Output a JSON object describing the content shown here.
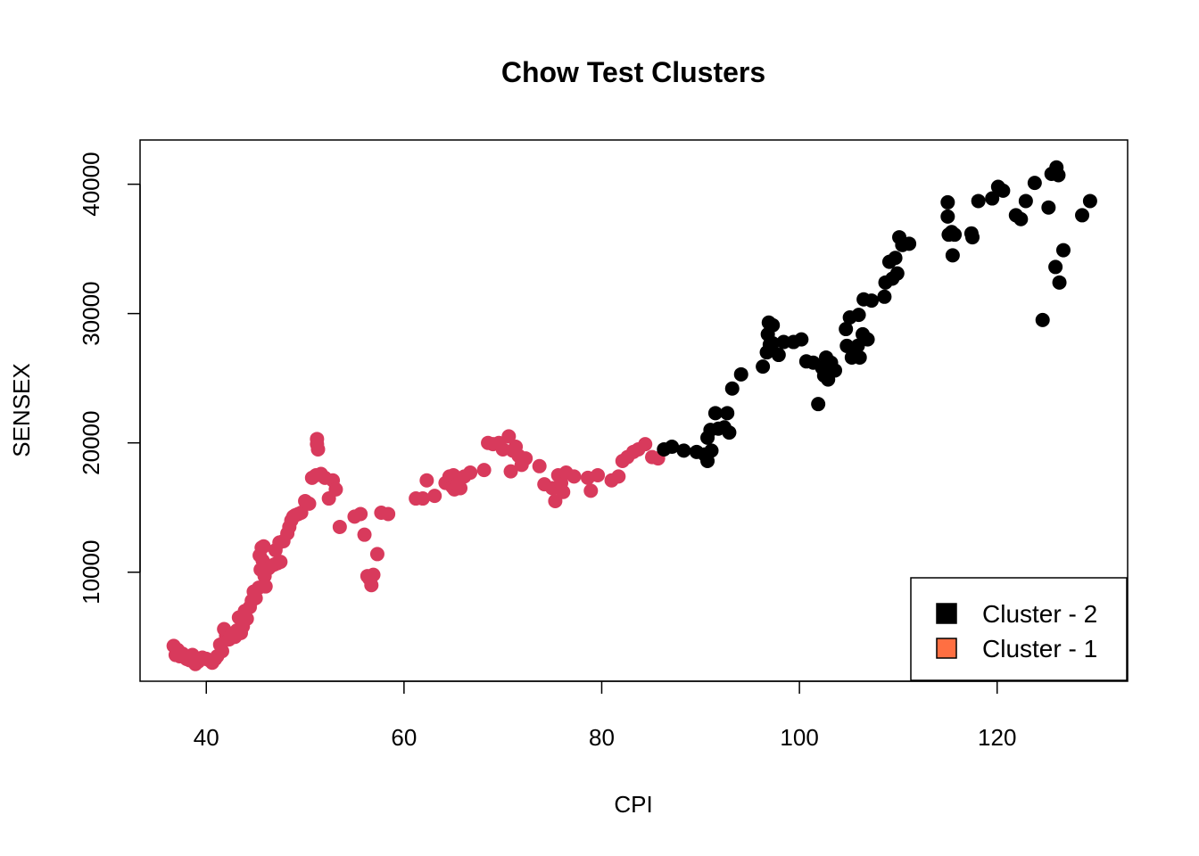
{
  "chart_data": {
    "type": "scatter",
    "title": "Chow Test Clusters",
    "xlabel": "CPI",
    "ylabel": "SENSEX",
    "xlim": [
      33.3,
      133.2
    ],
    "ylim": [
      1570,
      43420
    ],
    "x_ticks": [
      40,
      60,
      80,
      100,
      120
    ],
    "y_ticks": [
      10000,
      20000,
      30000,
      40000
    ],
    "grid": false,
    "legend": {
      "position": "bottom-right",
      "entries": [
        {
          "label": "Cluster - 2",
          "color": "#000000"
        },
        {
          "label": "Cluster - 1",
          "color": "#FF6F42"
        }
      ]
    },
    "series": [
      {
        "name": "Cluster - 1",
        "color": "#D83A5C",
        "points": [
          [
            36.7,
            4300
          ],
          [
            36.9,
            3600
          ],
          [
            37.1,
            4000
          ],
          [
            37.3,
            3500
          ],
          [
            37.6,
            3700
          ],
          [
            38.0,
            3300
          ],
          [
            38.3,
            3200
          ],
          [
            38.6,
            3600
          ],
          [
            38.9,
            2900
          ],
          [
            39.2,
            3100
          ],
          [
            39.6,
            3400
          ],
          [
            40.0,
            3300
          ],
          [
            40.3,
            3200
          ],
          [
            40.6,
            3000
          ],
          [
            40.9,
            3300
          ],
          [
            41.1,
            3500
          ],
          [
            41.4,
            4400
          ],
          [
            41.6,
            3900
          ],
          [
            41.8,
            5600
          ],
          [
            42.0,
            5100
          ],
          [
            42.3,
            4800
          ],
          [
            42.6,
            5200
          ],
          [
            42.9,
            5000
          ],
          [
            43.1,
            5500
          ],
          [
            43.3,
            6500
          ],
          [
            43.5,
            5300
          ],
          [
            43.7,
            5800
          ],
          [
            43.9,
            7000
          ],
          [
            44.1,
            6400
          ],
          [
            44.4,
            7300
          ],
          [
            44.6,
            7800
          ],
          [
            44.8,
            8500
          ],
          [
            45.0,
            8000
          ],
          [
            45.3,
            8800
          ],
          [
            45.5,
            10200
          ],
          [
            45.7,
            10900
          ],
          [
            45.9,
            9700
          ],
          [
            45.4,
            11300
          ],
          [
            45.6,
            11900
          ],
          [
            45.8,
            12000
          ],
          [
            46.0,
            8900
          ],
          [
            46.3,
            10300
          ],
          [
            46.6,
            10500
          ],
          [
            46.9,
            10600
          ],
          [
            47.2,
            10700
          ],
          [
            47.5,
            10800
          ],
          [
            47.0,
            11700
          ],
          [
            47.4,
            12300
          ],
          [
            47.8,
            12400
          ],
          [
            48.2,
            13000
          ],
          [
            48.4,
            13500
          ],
          [
            48.6,
            14000
          ],
          [
            48.8,
            14300
          ],
          [
            49.0,
            14400
          ],
          [
            49.3,
            14500
          ],
          [
            49.6,
            14600
          ],
          [
            50.0,
            15500
          ],
          [
            50.4,
            15300
          ],
          [
            50.7,
            17300
          ],
          [
            51.1,
            17500
          ],
          [
            51.3,
            19500
          ],
          [
            51.2,
            19900
          ],
          [
            51.2,
            20300
          ],
          [
            51.6,
            17600
          ],
          [
            52.0,
            17300
          ],
          [
            52.4,
            15700
          ],
          [
            52.8,
            17100
          ],
          [
            53.1,
            16400
          ],
          [
            53.5,
            13500
          ],
          [
            55.0,
            14300
          ],
          [
            55.6,
            14500
          ],
          [
            56.0,
            12900
          ],
          [
            56.3,
            9700
          ],
          [
            56.5,
            9500
          ],
          [
            56.7,
            9000
          ],
          [
            56.9,
            9800
          ],
          [
            57.3,
            11400
          ],
          [
            57.7,
            14600
          ],
          [
            58.4,
            14500
          ],
          [
            61.2,
            15700
          ],
          [
            61.9,
            15700
          ],
          [
            62.3,
            17100
          ],
          [
            63.1,
            15900
          ],
          [
            64.2,
            16900
          ],
          [
            64.6,
            17400
          ],
          [
            65.0,
            17500
          ],
          [
            64.9,
            16600
          ],
          [
            65.1,
            16400
          ],
          [
            65.4,
            16800
          ],
          [
            65.7,
            16500
          ],
          [
            66.1,
            17400
          ],
          [
            66.7,
            17700
          ],
          [
            68.1,
            17900
          ],
          [
            68.5,
            20000
          ],
          [
            69.0,
            19900
          ],
          [
            69.6,
            20000
          ],
          [
            70.0,
            19500
          ],
          [
            70.6,
            20500
          ],
          [
            71.0,
            19400
          ],
          [
            71.3,
            19700
          ],
          [
            70.8,
            17800
          ],
          [
            71.6,
            19000
          ],
          [
            71.9,
            18300
          ],
          [
            72.3,
            18800
          ],
          [
            73.7,
            18200
          ],
          [
            74.2,
            16800
          ],
          [
            75.0,
            16500
          ],
          [
            75.3,
            15500
          ],
          [
            75.6,
            17500
          ],
          [
            75.9,
            16900
          ],
          [
            76.1,
            16200
          ],
          [
            76.4,
            17700
          ],
          [
            77.2,
            17400
          ],
          [
            78.6,
            17300
          ],
          [
            78.9,
            16300
          ],
          [
            79.6,
            17500
          ],
          [
            81.0,
            17100
          ],
          [
            81.7,
            17400
          ],
          [
            82.1,
            18600
          ],
          [
            82.6,
            18900
          ],
          [
            83.2,
            19300
          ],
          [
            83.7,
            19500
          ],
          [
            84.4,
            19900
          ],
          [
            85.1,
            18900
          ],
          [
            85.7,
            18800
          ]
        ]
      },
      {
        "name": "Cluster - 2",
        "color": "#000000",
        "points": [
          [
            86.3,
            19500
          ],
          [
            87.1,
            19700
          ],
          [
            88.3,
            19400
          ],
          [
            89.6,
            19300
          ],
          [
            90.4,
            19100
          ],
          [
            90.7,
            18600
          ],
          [
            90.7,
            20400
          ],
          [
            91.1,
            19400
          ],
          [
            91.0,
            21000
          ],
          [
            91.5,
            22300
          ],
          [
            91.8,
            21100
          ],
          [
            92.4,
            21200
          ],
          [
            92.7,
            22300
          ],
          [
            92.9,
            20800
          ],
          [
            93.2,
            24200
          ],
          [
            94.1,
            25300
          ],
          [
            96.3,
            25900
          ],
          [
            96.7,
            27000
          ],
          [
            96.8,
            28400
          ],
          [
            96.9,
            29300
          ],
          [
            97.0,
            27600
          ],
          [
            97.3,
            29100
          ],
          [
            97.3,
            27700
          ],
          [
            97.9,
            26800
          ],
          [
            98.4,
            27800
          ],
          [
            99.4,
            27800
          ],
          [
            100.2,
            28000
          ],
          [
            100.7,
            26300
          ],
          [
            101.4,
            26200
          ],
          [
            101.9,
            23000
          ],
          [
            102.3,
            25800
          ],
          [
            102.5,
            25200
          ],
          [
            102.7,
            26600
          ],
          [
            102.9,
            24900
          ],
          [
            103.2,
            26200
          ],
          [
            103.6,
            25600
          ],
          [
            104.7,
            28800
          ],
          [
            104.8,
            27500
          ],
          [
            105.1,
            29700
          ],
          [
            105.3,
            26600
          ],
          [
            105.6,
            27100
          ],
          [
            105.9,
            27500
          ],
          [
            106.1,
            26600
          ],
          [
            106.0,
            29900
          ],
          [
            106.4,
            28400
          ],
          [
            106.5,
            31100
          ],
          [
            106.9,
            28000
          ],
          [
            107.3,
            31000
          ],
          [
            108.6,
            31300
          ],
          [
            108.7,
            32400
          ],
          [
            109.1,
            34000
          ],
          [
            109.4,
            32700
          ],
          [
            109.7,
            34300
          ],
          [
            109.9,
            33100
          ],
          [
            110.1,
            35900
          ],
          [
            110.4,
            35300
          ],
          [
            111.1,
            35400
          ],
          [
            115.0,
            38600
          ],
          [
            115.0,
            37500
          ],
          [
            115.1,
            36100
          ],
          [
            115.4,
            36300
          ],
          [
            115.5,
            34500
          ],
          [
            115.7,
            36100
          ],
          [
            117.4,
            36200
          ],
          [
            117.5,
            35900
          ],
          [
            118.1,
            38700
          ],
          [
            119.5,
            38900
          ],
          [
            120.1,
            39800
          ],
          [
            120.6,
            39500
          ],
          [
            121.9,
            37600
          ],
          [
            122.4,
            37300
          ],
          [
            122.9,
            38700
          ],
          [
            123.8,
            40100
          ],
          [
            124.6,
            29500
          ],
          [
            125.2,
            38200
          ],
          [
            125.5,
            40800
          ],
          [
            125.9,
            33600
          ],
          [
            126.0,
            41300
          ],
          [
            126.2,
            40700
          ],
          [
            126.3,
            32400
          ],
          [
            126.7,
            34900
          ],
          [
            128.6,
            37600
          ],
          [
            129.4,
            38700
          ]
        ]
      }
    ]
  }
}
